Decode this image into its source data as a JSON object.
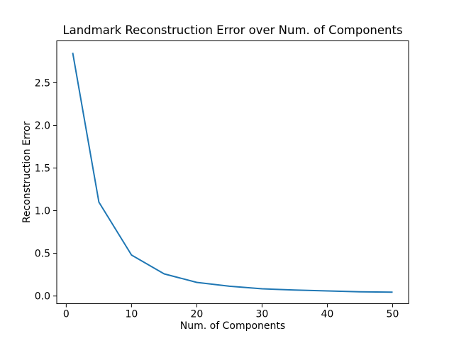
{
  "chart_data": {
    "type": "line",
    "title": "Landmark Reconstruction Error over Num. of Components",
    "xlabel": "Num. of Components",
    "ylabel": "Reconstruction Error",
    "series": [
      {
        "name": "reconstruction-error",
        "x": [
          1,
          5,
          10,
          15,
          20,
          25,
          30,
          35,
          40,
          45,
          50
        ],
        "y": [
          2.85,
          1.1,
          0.48,
          0.26,
          0.16,
          0.115,
          0.085,
          0.07,
          0.06,
          0.05,
          0.045
        ],
        "color": "#1f77b4",
        "line_width": 2,
        "markers": false
      }
    ],
    "xlim": [
      -1.45,
      52.45
    ],
    "ylim": [
      -0.09,
      2.99
    ],
    "xtick_values": [
      0,
      10,
      20,
      30,
      40,
      50
    ],
    "xtick_labels": [
      "0",
      "10",
      "20",
      "30",
      "40",
      "50"
    ],
    "ytick_values": [
      0.0,
      0.5,
      1.0,
      1.5,
      2.0,
      2.5
    ],
    "ytick_labels": [
      "0.0",
      "0.5",
      "1.0",
      "1.5",
      "2.0",
      "2.5"
    ],
    "grid": false,
    "legend": false,
    "spine_color": "#000000",
    "background_color": "#ffffff"
  }
}
